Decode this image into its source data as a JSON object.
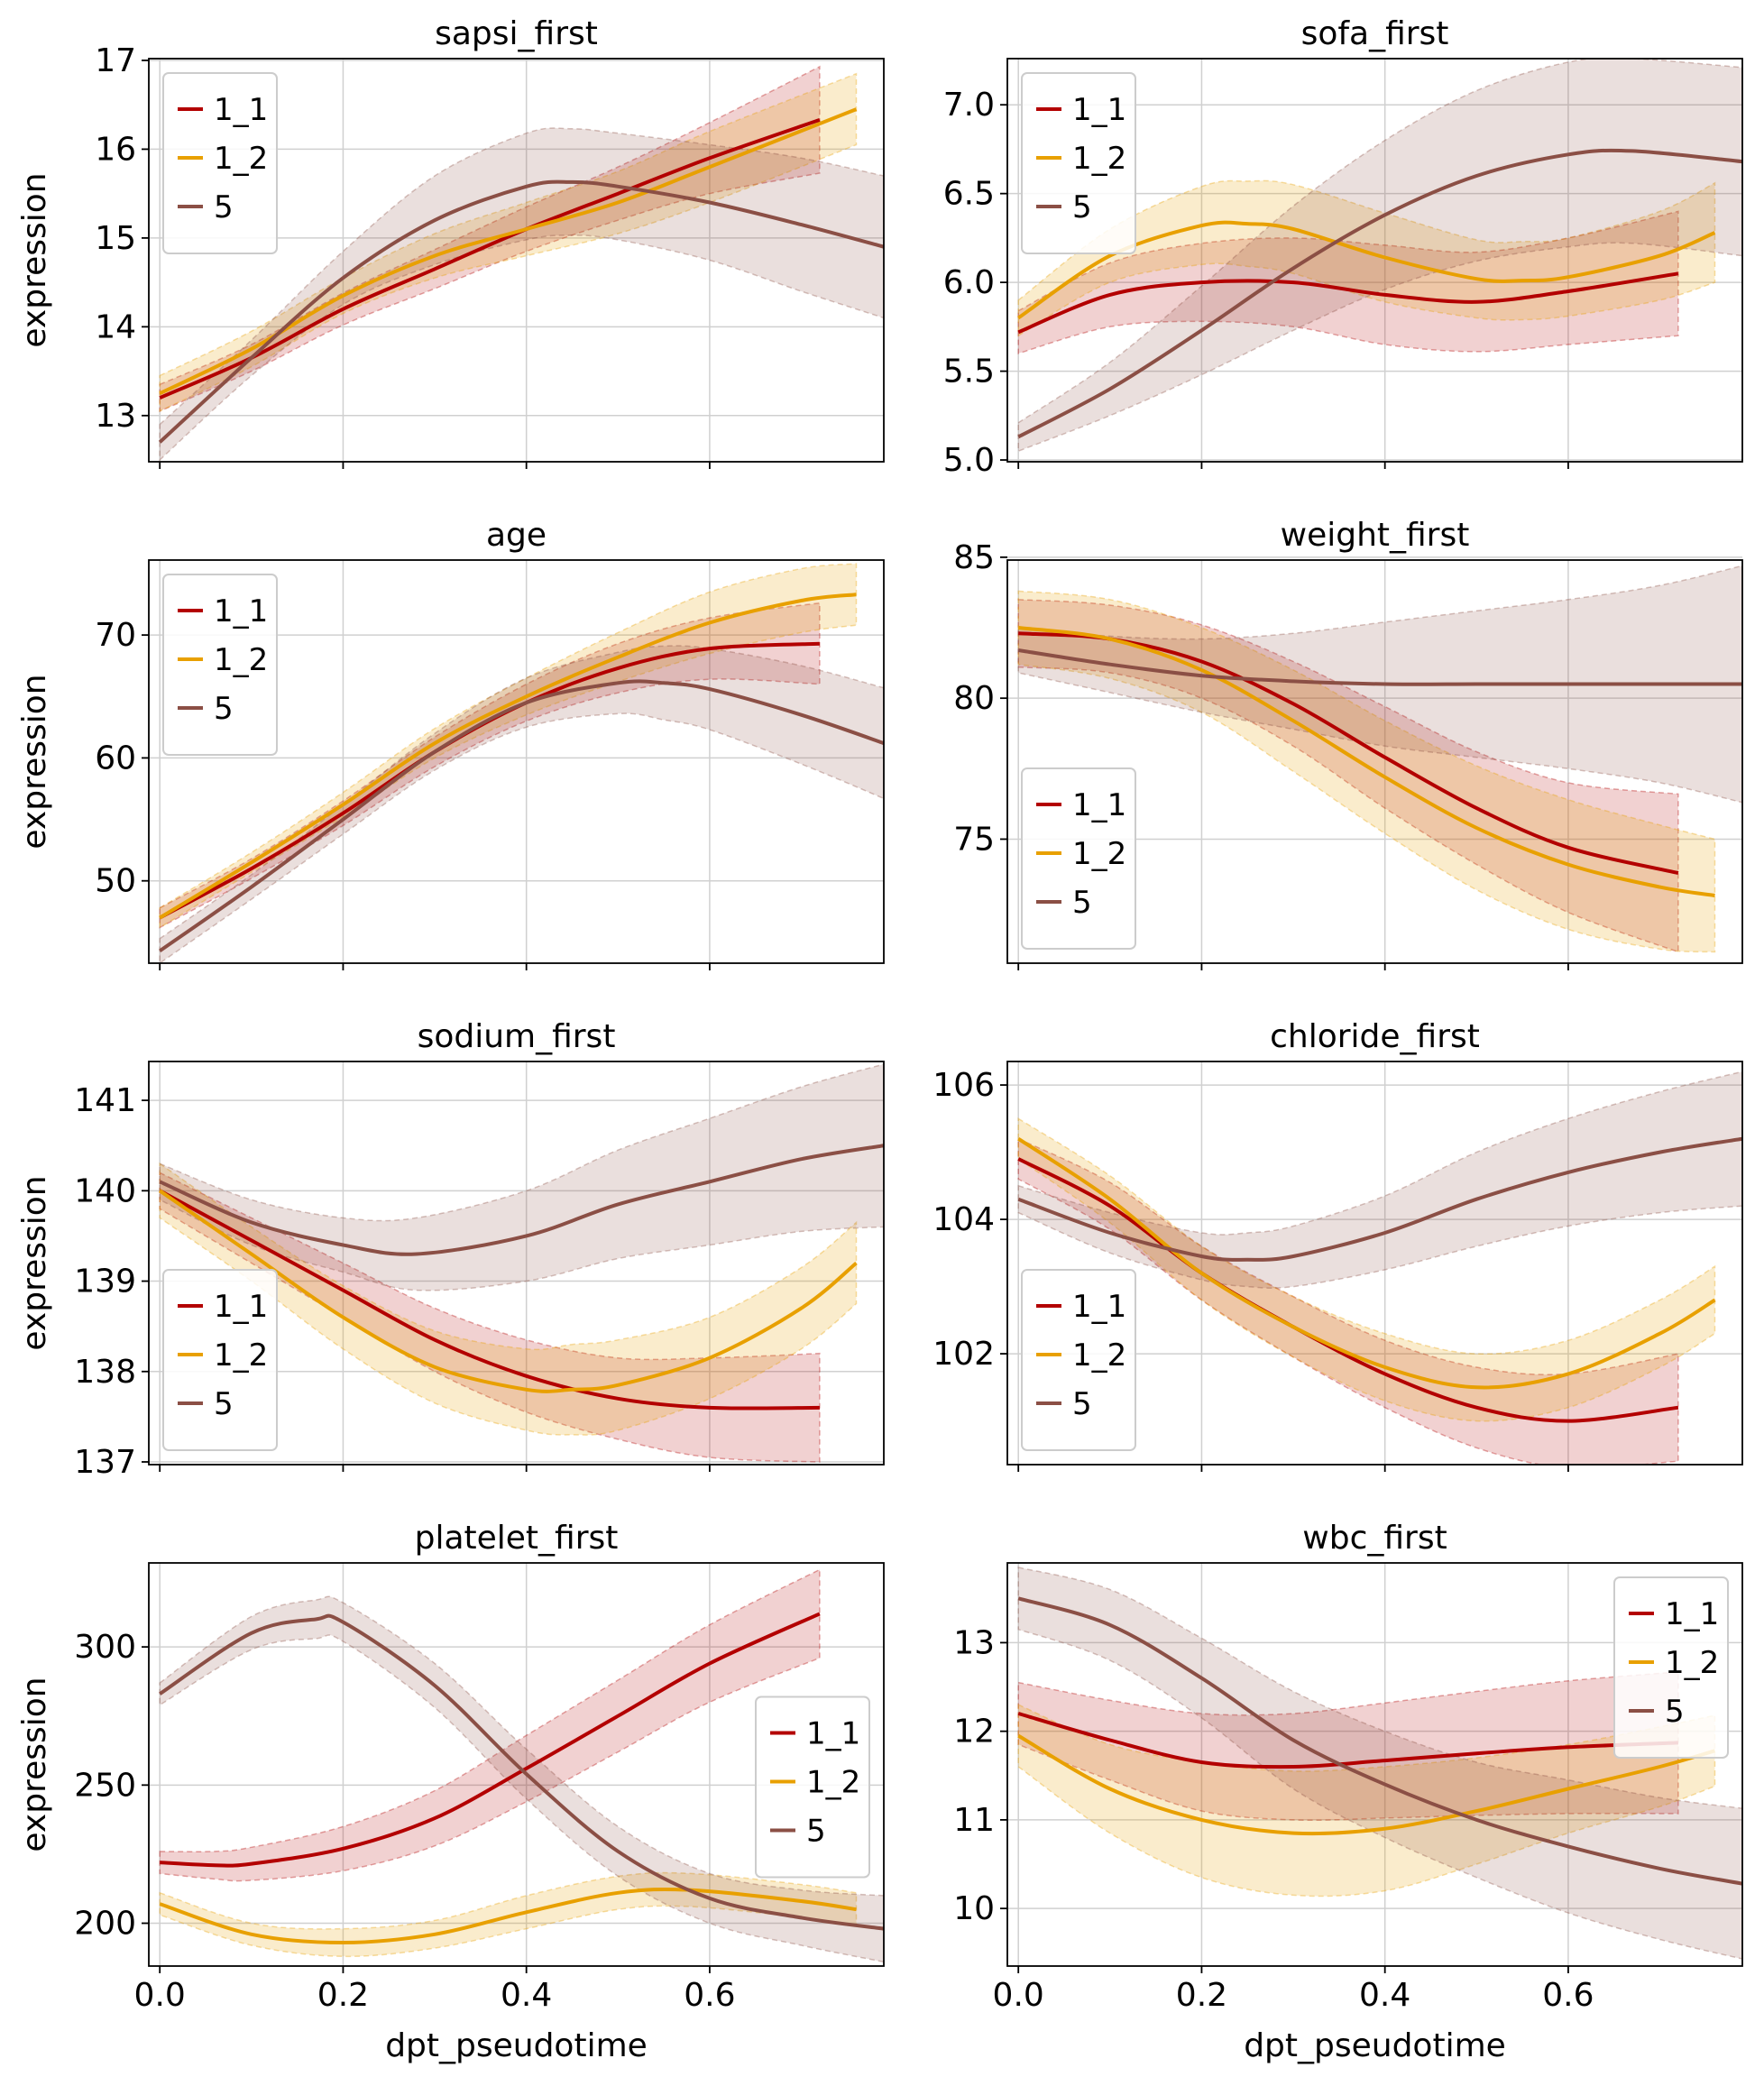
{
  "figure": {
    "xlabel": "dpt_pseudotime",
    "ylabel": "expression",
    "legend_labels": [
      "1_1",
      "1_2",
      "5"
    ],
    "colors": {
      "1_1": "#b30000",
      "1_2": "#e8a000",
      "5": "#8b4f45",
      "grid": "#d0d0d0"
    }
  },
  "chart_data": [
    {
      "type": "line",
      "title": "sapsi_first",
      "xlim": [
        -0.012,
        0.79
      ],
      "ylim": [
        12.48,
        17.02
      ],
      "xticks": [
        0.0,
        0.2,
        0.4,
        0.6
      ],
      "xticklabels": [],
      "yticks": [
        13,
        14,
        15,
        16,
        17
      ],
      "ylabel": "expression",
      "xlabel": "",
      "legend_loc": "top-left",
      "grid": true,
      "series": [
        {
          "name": "1_1",
          "x": [
            0,
            0.1,
            0.2,
            0.3,
            0.4,
            0.5,
            0.6,
            0.72
          ],
          "y": [
            13.2,
            13.65,
            14.2,
            14.65,
            15.1,
            15.5,
            15.9,
            16.33
          ],
          "ci": [
            0.15,
            0.15,
            0.18,
            0.22,
            0.25,
            0.3,
            0.4,
            0.6
          ]
        },
        {
          "name": "1_2",
          "x": [
            0,
            0.1,
            0.2,
            0.3,
            0.4,
            0.5,
            0.6,
            0.76
          ],
          "y": [
            13.25,
            13.75,
            14.35,
            14.8,
            15.1,
            15.4,
            15.8,
            16.45
          ],
          "ci": [
            0.2,
            0.2,
            0.2,
            0.25,
            0.3,
            0.35,
            0.4,
            0.4
          ]
        },
        {
          "name": "5",
          "x": [
            0,
            0.1,
            0.2,
            0.3,
            0.4,
            0.45,
            0.5,
            0.6,
            0.7,
            0.79
          ],
          "y": [
            12.7,
            13.65,
            14.55,
            15.2,
            15.58,
            15.63,
            15.58,
            15.4,
            15.15,
            14.9
          ],
          "ci": [
            0.2,
            0.2,
            0.3,
            0.5,
            0.6,
            0.6,
            0.6,
            0.65,
            0.75,
            0.8
          ]
        }
      ]
    },
    {
      "type": "line",
      "title": "sofa_first",
      "xlim": [
        -0.012,
        0.79
      ],
      "ylim": [
        4.99,
        7.26
      ],
      "xticks": [
        0.0,
        0.2,
        0.4,
        0.6
      ],
      "xticklabels": [],
      "yticks": [
        5.0,
        5.5,
        6.0,
        6.5,
        7.0
      ],
      "ylabel": "",
      "xlabel": "",
      "legend_loc": "top-left",
      "grid": true,
      "series": [
        {
          "name": "1_1",
          "x": [
            0,
            0.1,
            0.2,
            0.3,
            0.4,
            0.5,
            0.6,
            0.72
          ],
          "y": [
            5.72,
            5.93,
            6.0,
            6.0,
            5.93,
            5.89,
            5.95,
            6.05
          ],
          "ci": [
            0.12,
            0.18,
            0.22,
            0.25,
            0.28,
            0.28,
            0.3,
            0.35
          ]
        },
        {
          "name": "1_2",
          "x": [
            0,
            0.1,
            0.2,
            0.25,
            0.3,
            0.4,
            0.5,
            0.55,
            0.6,
            0.7,
            0.76
          ],
          "y": [
            5.8,
            6.15,
            6.32,
            6.33,
            6.3,
            6.14,
            6.02,
            6.01,
            6.03,
            6.15,
            6.28
          ],
          "ci": [
            0.1,
            0.15,
            0.22,
            0.24,
            0.25,
            0.25,
            0.22,
            0.22,
            0.22,
            0.25,
            0.28
          ]
        },
        {
          "name": "5",
          "x": [
            0,
            0.1,
            0.2,
            0.3,
            0.4,
            0.5,
            0.6,
            0.67,
            0.79
          ],
          "y": [
            5.13,
            5.4,
            5.73,
            6.08,
            6.38,
            6.6,
            6.72,
            6.74,
            6.68
          ],
          "ci": [
            0.08,
            0.15,
            0.25,
            0.35,
            0.42,
            0.48,
            0.52,
            0.52,
            0.53
          ]
        }
      ]
    },
    {
      "type": "line",
      "title": "age",
      "xlim": [
        -0.012,
        0.79
      ],
      "ylim": [
        43.3,
        76.1
      ],
      "xticks": [
        0.0,
        0.2,
        0.4,
        0.6
      ],
      "xticklabels": [],
      "yticks": [
        50,
        60,
        70
      ],
      "ylabel": "expression",
      "xlabel": "",
      "legend_loc": "top-left",
      "grid": true,
      "series": [
        {
          "name": "1_1",
          "x": [
            0,
            0.1,
            0.2,
            0.3,
            0.4,
            0.5,
            0.6,
            0.72
          ],
          "y": [
            47,
            51,
            55.5,
            60.5,
            64.5,
            67.3,
            68.9,
            69.3
          ],
          "ci": [
            0.8,
            0.8,
            1.0,
            1.2,
            1.5,
            2.0,
            2.5,
            3.3
          ]
        },
        {
          "name": "1_2",
          "x": [
            0,
            0.1,
            0.2,
            0.3,
            0.4,
            0.5,
            0.6,
            0.7,
            0.76
          ],
          "y": [
            47,
            51.5,
            56.2,
            61.2,
            65,
            68.2,
            71,
            72.8,
            73.3
          ],
          "ci": [
            0.8,
            0.8,
            1.0,
            1.2,
            1.5,
            2.0,
            2.5,
            2.6,
            2.5
          ]
        },
        {
          "name": "5",
          "x": [
            0,
            0.1,
            0.2,
            0.3,
            0.4,
            0.5,
            0.55,
            0.6,
            0.7,
            0.79
          ],
          "y": [
            44.3,
            49.5,
            55,
            60.5,
            64.5,
            66.1,
            66.1,
            65.6,
            63.5,
            61.2
          ],
          "ci": [
            1.0,
            1.0,
            1.2,
            1.5,
            2.0,
            2.5,
            3.0,
            3.3,
            4.0,
            4.5
          ]
        }
      ]
    },
    {
      "type": "line",
      "title": "weight_first",
      "xlim": [
        -0.012,
        0.79
      ],
      "ylim": [
        70.6,
        84.9
      ],
      "xticks": [
        0.0,
        0.2,
        0.4,
        0.6
      ],
      "xticklabels": [],
      "yticks": [
        75,
        80,
        85
      ],
      "ylabel": "",
      "xlabel": "",
      "legend_loc": "bottom-left",
      "grid": true,
      "series": [
        {
          "name": "1_1",
          "x": [
            0,
            0.1,
            0.2,
            0.3,
            0.4,
            0.5,
            0.6,
            0.72
          ],
          "y": [
            82.3,
            82.1,
            81.3,
            79.8,
            77.9,
            76.1,
            74.7,
            73.8
          ],
          "ci": [
            1.2,
            1.2,
            1.3,
            1.5,
            1.8,
            2.0,
            2.3,
            2.8
          ]
        },
        {
          "name": "1_2",
          "x": [
            0,
            0.1,
            0.2,
            0.3,
            0.4,
            0.5,
            0.6,
            0.7,
            0.76
          ],
          "y": [
            82.5,
            82.1,
            81.0,
            79.2,
            77.2,
            75.4,
            74.1,
            73.3,
            73.0
          ],
          "ci": [
            1.3,
            1.4,
            1.5,
            1.8,
            2.0,
            2.2,
            2.3,
            2.2,
            2.0
          ]
        },
        {
          "name": "5",
          "x": [
            0,
            0.1,
            0.2,
            0.3,
            0.4,
            0.5,
            0.6,
            0.7,
            0.79
          ],
          "y": [
            81.7,
            81.2,
            80.8,
            80.6,
            80.5,
            80.5,
            80.5,
            80.5,
            80.5
          ],
          "ci": [
            0.8,
            1.0,
            1.3,
            1.7,
            2.2,
            2.6,
            3.0,
            3.5,
            4.2
          ]
        }
      ]
    },
    {
      "type": "line",
      "title": "sodium_first",
      "xlim": [
        -0.012,
        0.79
      ],
      "ylim": [
        136.97,
        141.43
      ],
      "xticks": [
        0.0,
        0.2,
        0.4,
        0.6
      ],
      "xticklabels": [],
      "yticks": [
        137,
        138,
        139,
        140,
        141
      ],
      "ylabel": "expression",
      "xlabel": "",
      "legend_loc": "bottom-left",
      "grid": true,
      "series": [
        {
          "name": "1_1",
          "x": [
            0,
            0.1,
            0.2,
            0.3,
            0.4,
            0.5,
            0.6,
            0.72
          ],
          "y": [
            140.0,
            139.45,
            138.9,
            138.35,
            137.95,
            137.7,
            137.6,
            137.6
          ],
          "ci": [
            0.2,
            0.25,
            0.3,
            0.35,
            0.4,
            0.45,
            0.55,
            0.6
          ]
        },
        {
          "name": "1_2",
          "x": [
            0,
            0.1,
            0.2,
            0.3,
            0.4,
            0.45,
            0.5,
            0.6,
            0.7,
            0.76
          ],
          "y": [
            140.0,
            139.3,
            138.6,
            138.05,
            137.8,
            137.8,
            137.85,
            138.15,
            138.7,
            139.2
          ],
          "ci": [
            0.3,
            0.3,
            0.35,
            0.4,
            0.45,
            0.5,
            0.5,
            0.45,
            0.45,
            0.45
          ]
        },
        {
          "name": "5",
          "x": [
            0,
            0.1,
            0.2,
            0.28,
            0.4,
            0.5,
            0.6,
            0.7,
            0.79
          ],
          "y": [
            140.1,
            139.65,
            139.4,
            139.3,
            139.5,
            139.85,
            140.1,
            140.35,
            140.5
          ],
          "ci": [
            0.2,
            0.25,
            0.3,
            0.4,
            0.5,
            0.6,
            0.7,
            0.8,
            0.9
          ]
        }
      ]
    },
    {
      "type": "line",
      "title": "chloride_first",
      "xlim": [
        -0.012,
        0.79
      ],
      "ylim": [
        100.35,
        106.35
      ],
      "xticks": [
        0.0,
        0.2,
        0.4,
        0.6
      ],
      "xticklabels": [],
      "yticks": [
        102,
        104,
        106
      ],
      "ylabel": "",
      "xlabel": "",
      "legend_loc": "bottom-left",
      "grid": true,
      "series": [
        {
          "name": "1_1",
          "x": [
            0,
            0.1,
            0.2,
            0.3,
            0.4,
            0.5,
            0.6,
            0.72
          ],
          "y": [
            104.9,
            104.2,
            103.2,
            102.4,
            101.7,
            101.2,
            101.0,
            101.2
          ],
          "ci": [
            0.3,
            0.35,
            0.4,
            0.45,
            0.5,
            0.6,
            0.7,
            0.8
          ]
        },
        {
          "name": "1_2",
          "x": [
            0,
            0.1,
            0.2,
            0.3,
            0.4,
            0.5,
            0.6,
            0.7,
            0.76
          ],
          "y": [
            105.2,
            104.3,
            103.2,
            102.4,
            101.8,
            101.5,
            101.7,
            102.3,
            102.8
          ],
          "ci": [
            0.3,
            0.35,
            0.4,
            0.45,
            0.5,
            0.5,
            0.5,
            0.5,
            0.5
          ]
        },
        {
          "name": "5",
          "x": [
            0,
            0.1,
            0.2,
            0.25,
            0.3,
            0.4,
            0.5,
            0.6,
            0.7,
            0.79
          ],
          "y": [
            104.3,
            103.8,
            103.45,
            103.4,
            103.45,
            103.8,
            104.3,
            104.7,
            105.0,
            105.2
          ],
          "ci": [
            0.2,
            0.3,
            0.35,
            0.4,
            0.45,
            0.55,
            0.7,
            0.8,
            0.9,
            1.0
          ]
        }
      ]
    },
    {
      "type": "line",
      "title": "platelet_first",
      "xlim": [
        -0.012,
        0.79
      ],
      "ylim": [
        184.5,
        330.4
      ],
      "xticks": [
        0.0,
        0.2,
        0.4,
        0.6
      ],
      "xticklabels": [
        "0.0",
        "0.2",
        "0.4",
        "0.6"
      ],
      "yticks": [
        200,
        250,
        300
      ],
      "ylabel": "expression",
      "xlabel": "dpt_pseudotime",
      "legend_loc": "center-right",
      "grid": true,
      "series": [
        {
          "name": "1_1",
          "x": [
            0,
            0.06,
            0.1,
            0.2,
            0.3,
            0.4,
            0.5,
            0.6,
            0.72
          ],
          "y": [
            222,
            221,
            221.5,
            227,
            238,
            256,
            275,
            294,
            312
          ],
          "ci": [
            4,
            5,
            6,
            8,
            10,
            12,
            13,
            14,
            16
          ]
        },
        {
          "name": "1_2",
          "x": [
            0,
            0.1,
            0.2,
            0.3,
            0.4,
            0.5,
            0.58,
            0.7,
            0.76
          ],
          "y": [
            207,
            196,
            193,
            196,
            204,
            211,
            212,
            208,
            205
          ],
          "ci": [
            4,
            4,
            5,
            5,
            6,
            6,
            6,
            6,
            6
          ]
        },
        {
          "name": "5",
          "x": [
            0,
            0.1,
            0.17,
            0.2,
            0.3,
            0.4,
            0.5,
            0.6,
            0.7,
            0.79
          ],
          "y": [
            283,
            305,
            310,
            309,
            286,
            254,
            226,
            209,
            202,
            198
          ],
          "ci": [
            4,
            6,
            7,
            7,
            8,
            9,
            9,
            9,
            10,
            12
          ]
        }
      ]
    },
    {
      "type": "line",
      "title": "wbc_first",
      "xlim": [
        -0.012,
        0.79
      ],
      "ylim": [
        9.35,
        13.9
      ],
      "xticks": [
        0.0,
        0.2,
        0.4,
        0.6
      ],
      "xticklabels": [
        "0.0",
        "0.2",
        "0.4",
        "0.6"
      ],
      "yticks": [
        10,
        11,
        12,
        13
      ],
      "ylabel": "",
      "xlabel": "dpt_pseudotime",
      "legend_loc": "top-right",
      "grid": true,
      "series": [
        {
          "name": "1_1",
          "x": [
            0,
            0.1,
            0.2,
            0.3,
            0.4,
            0.5,
            0.6,
            0.72
          ],
          "y": [
            12.2,
            11.9,
            11.65,
            11.6,
            11.67,
            11.75,
            11.82,
            11.87
          ],
          "ci": [
            0.35,
            0.45,
            0.55,
            0.6,
            0.65,
            0.7,
            0.75,
            0.8
          ]
        },
        {
          "name": "1_2",
          "x": [
            0,
            0.1,
            0.2,
            0.3,
            0.4,
            0.5,
            0.6,
            0.7,
            0.76
          ],
          "y": [
            11.95,
            11.35,
            11.0,
            10.85,
            10.9,
            11.1,
            11.35,
            11.6,
            11.78
          ],
          "ci": [
            0.35,
            0.5,
            0.65,
            0.7,
            0.7,
            0.6,
            0.5,
            0.45,
            0.4
          ]
        },
        {
          "name": "5",
          "x": [
            0,
            0.1,
            0.2,
            0.3,
            0.4,
            0.5,
            0.6,
            0.7,
            0.79
          ],
          "y": [
            13.5,
            13.2,
            12.6,
            11.9,
            11.4,
            11.0,
            10.7,
            10.45,
            10.28
          ],
          "ci": [
            0.35,
            0.4,
            0.45,
            0.55,
            0.6,
            0.65,
            0.75,
            0.8,
            0.85
          ]
        }
      ]
    }
  ]
}
